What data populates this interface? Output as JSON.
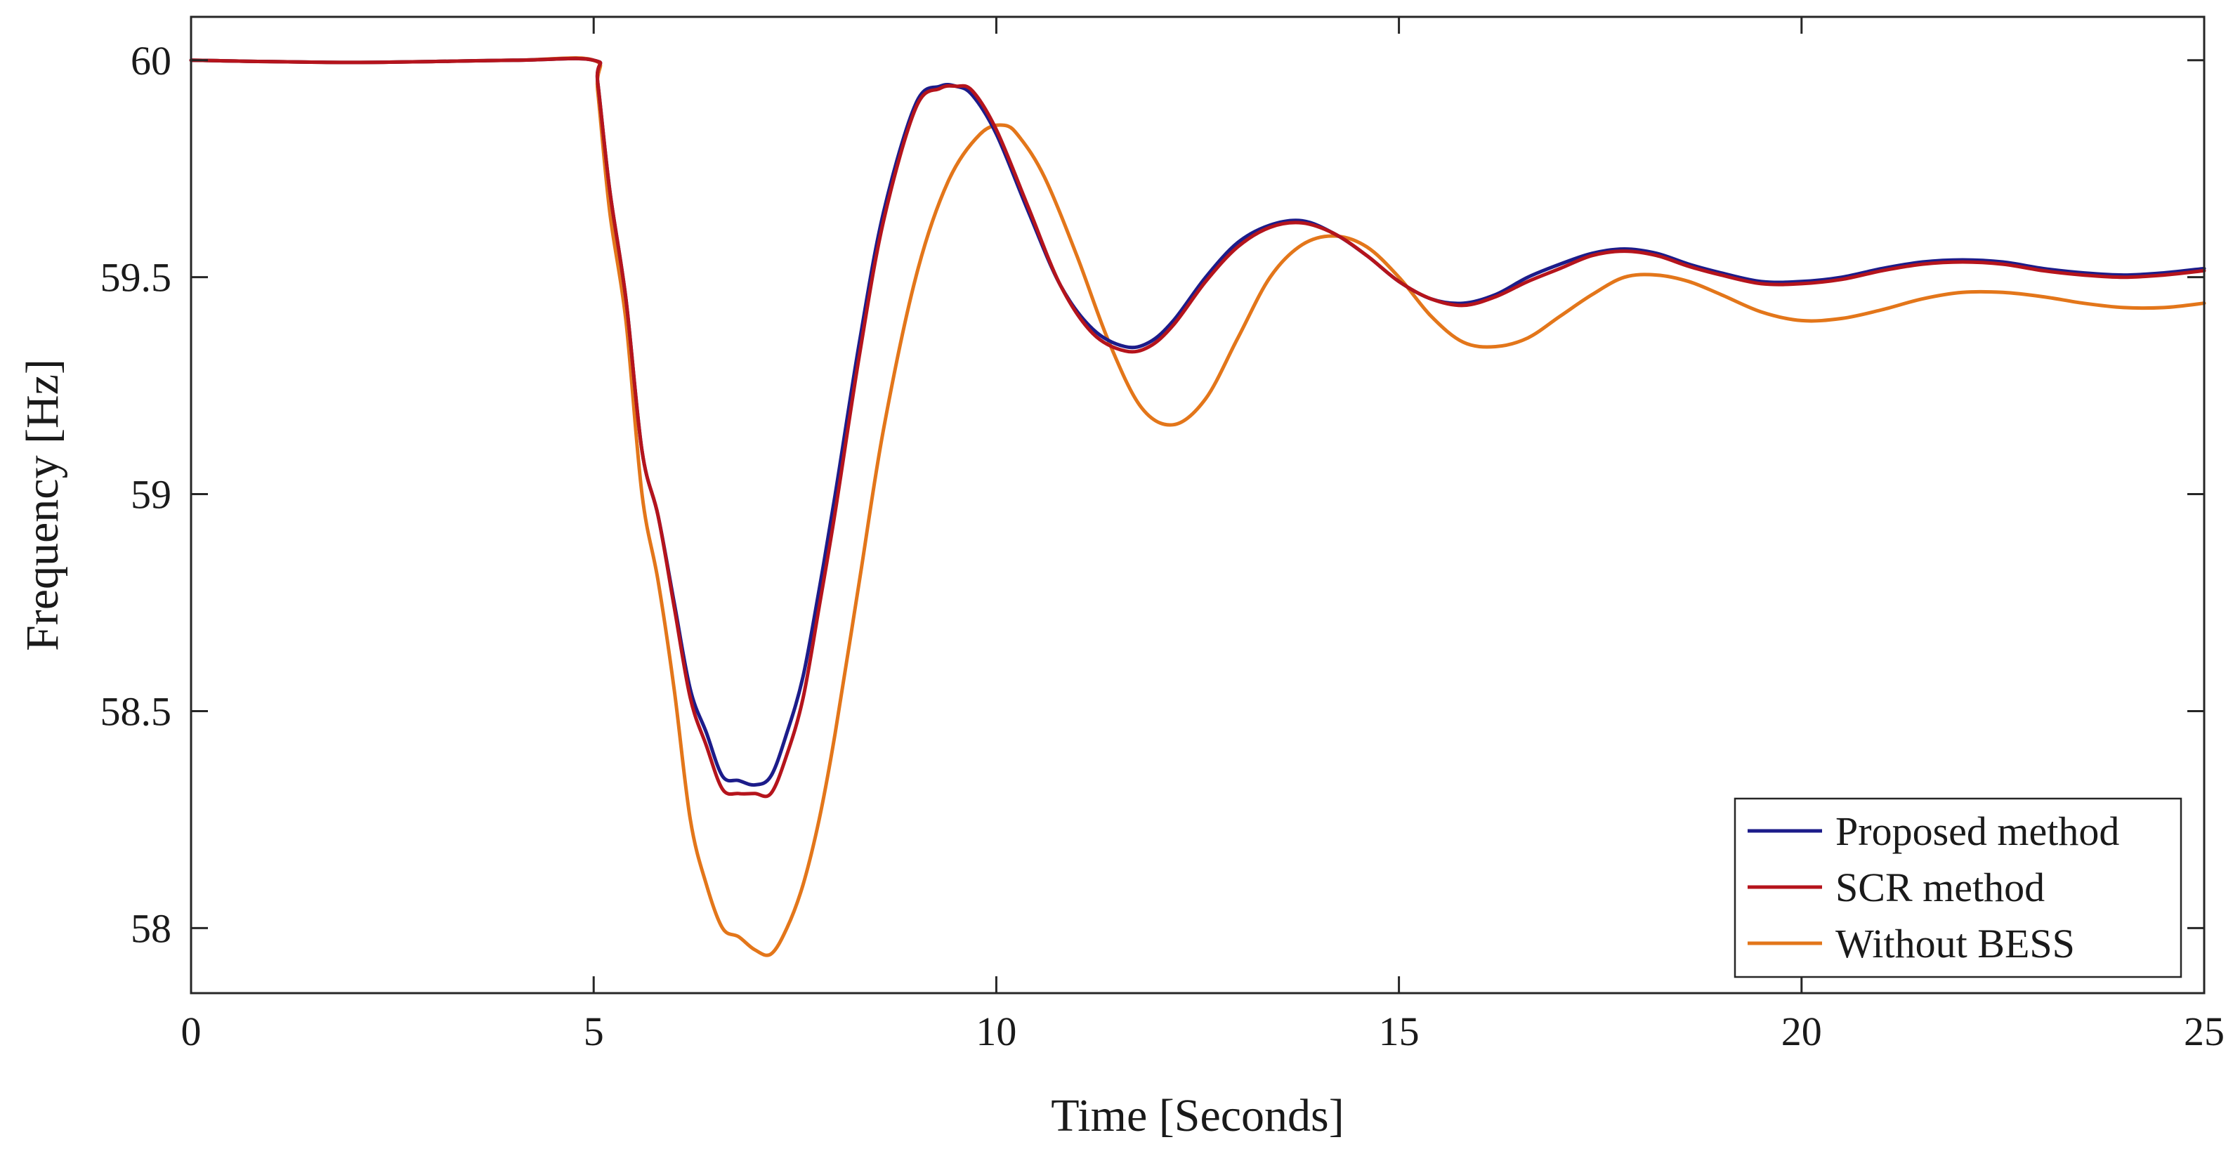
{
  "chart_data": {
    "type": "line",
    "title": "",
    "xlabel": "Time [Seconds]",
    "ylabel": "Frequency [Hz]",
    "xlim": [
      0,
      25
    ],
    "ylim": [
      57.85,
      60.1
    ],
    "xticks": [
      0,
      5,
      10,
      15,
      20,
      25
    ],
    "yticks": [
      58,
      58.5,
      59,
      59.5,
      60
    ],
    "ytick_labels": [
      "58",
      "58.5",
      "59",
      "59.5",
      "60"
    ],
    "grid": false,
    "legend_position": "bottom-right",
    "series": [
      {
        "name": "Proposed method",
        "color": "#1c1c8a",
        "x": [
          0,
          2,
          4,
          5,
          5.05,
          5.2,
          5.4,
          5.6,
          5.8,
          6.0,
          6.2,
          6.4,
          6.6,
          6.8,
          7.0,
          7.2,
          7.4,
          7.6,
          7.8,
          8.0,
          8.3,
          8.6,
          9.0,
          9.3,
          9.5,
          9.7,
          10.0,
          10.4,
          10.8,
          11.2,
          11.6,
          11.9,
          12.2,
          12.6,
          13.0,
          13.4,
          13.8,
          14.2,
          14.6,
          15.0,
          15.4,
          15.8,
          16.2,
          16.6,
          17.0,
          17.4,
          17.8,
          18.2,
          18.6,
          19.0,
          19.5,
          20.0,
          20.5,
          21.0,
          21.5,
          22.0,
          22.5,
          23.0,
          23.5,
          24.0,
          24.5,
          25.0
        ],
        "y": [
          60.0,
          59.995,
          60.0,
          60.0,
          59.95,
          59.7,
          59.45,
          59.1,
          58.95,
          58.75,
          58.55,
          58.45,
          58.35,
          58.34,
          58.33,
          58.35,
          58.45,
          58.58,
          58.78,
          59.0,
          59.35,
          59.65,
          59.9,
          59.94,
          59.94,
          59.92,
          59.83,
          59.65,
          59.48,
          59.38,
          59.34,
          59.35,
          59.4,
          59.5,
          59.58,
          59.62,
          59.63,
          59.6,
          59.55,
          59.49,
          59.45,
          59.44,
          59.46,
          59.5,
          59.53,
          59.555,
          59.565,
          59.555,
          59.53,
          59.51,
          59.49,
          59.49,
          59.5,
          59.52,
          59.535,
          59.54,
          59.535,
          59.52,
          59.51,
          59.505,
          59.51,
          59.52
        ]
      },
      {
        "name": "SCR method",
        "color": "#b5141c",
        "x": [
          0,
          2,
          4,
          5,
          5.05,
          5.2,
          5.4,
          5.6,
          5.8,
          6.0,
          6.2,
          6.4,
          6.6,
          6.8,
          7.0,
          7.2,
          7.4,
          7.6,
          7.8,
          8.0,
          8.3,
          8.6,
          9.0,
          9.3,
          9.5,
          9.7,
          10.0,
          10.4,
          10.8,
          11.2,
          11.6,
          11.9,
          12.2,
          12.6,
          13.0,
          13.4,
          13.8,
          14.2,
          14.6,
          15.0,
          15.4,
          15.8,
          16.2,
          16.6,
          17.0,
          17.4,
          17.8,
          18.2,
          18.6,
          19.0,
          19.5,
          20.0,
          20.5,
          21.0,
          21.5,
          22.0,
          22.5,
          23.0,
          23.5,
          24.0,
          24.5,
          25.0
        ],
        "y": [
          60.0,
          59.995,
          60.0,
          60.0,
          59.95,
          59.7,
          59.45,
          59.1,
          58.95,
          58.74,
          58.53,
          58.42,
          58.32,
          58.31,
          58.31,
          58.31,
          58.4,
          58.53,
          58.74,
          58.96,
          59.32,
          59.63,
          59.89,
          59.935,
          59.94,
          59.93,
          59.84,
          59.66,
          59.48,
          59.37,
          59.33,
          59.34,
          59.39,
          59.49,
          59.57,
          59.615,
          59.625,
          59.6,
          59.55,
          59.49,
          59.45,
          59.435,
          59.455,
          59.49,
          59.52,
          59.55,
          59.56,
          59.55,
          59.525,
          59.505,
          59.485,
          59.485,
          59.495,
          59.515,
          59.53,
          59.535,
          59.53,
          59.515,
          59.505,
          59.5,
          59.505,
          59.515
        ]
      },
      {
        "name": "Without BESS",
        "color": "#e3761a",
        "x": [
          0,
          2,
          4,
          5,
          5.05,
          5.2,
          5.4,
          5.6,
          5.8,
          6.0,
          6.2,
          6.4,
          6.6,
          6.8,
          7.0,
          7.2,
          7.4,
          7.6,
          7.8,
          8.0,
          8.3,
          8.6,
          9.0,
          9.4,
          9.8,
          10.1,
          10.3,
          10.6,
          11.0,
          11.4,
          11.8,
          12.2,
          12.6,
          13.0,
          13.4,
          13.8,
          14.2,
          14.6,
          15.0,
          15.4,
          15.8,
          16.2,
          16.6,
          17.0,
          17.4,
          17.8,
          18.2,
          18.6,
          19.0,
          19.5,
          20.0,
          20.5,
          21.0,
          21.5,
          22.0,
          22.5,
          23.0,
          23.5,
          24.0,
          24.5,
          25.0
        ],
        "y": [
          60.0,
          59.995,
          60.0,
          60.0,
          59.93,
          59.65,
          59.4,
          59.0,
          58.8,
          58.55,
          58.25,
          58.1,
          58.0,
          57.98,
          57.95,
          57.94,
          58.0,
          58.1,
          58.25,
          58.45,
          58.8,
          59.15,
          59.5,
          59.72,
          59.83,
          59.85,
          59.82,
          59.73,
          59.55,
          59.35,
          59.2,
          59.16,
          59.22,
          59.36,
          59.5,
          59.575,
          59.595,
          59.57,
          59.5,
          59.41,
          59.35,
          59.34,
          59.36,
          59.41,
          59.46,
          59.5,
          59.505,
          59.49,
          59.46,
          59.42,
          59.4,
          59.405,
          59.425,
          59.45,
          59.465,
          59.465,
          59.455,
          59.44,
          59.43,
          59.43,
          59.44
        ]
      }
    ]
  }
}
